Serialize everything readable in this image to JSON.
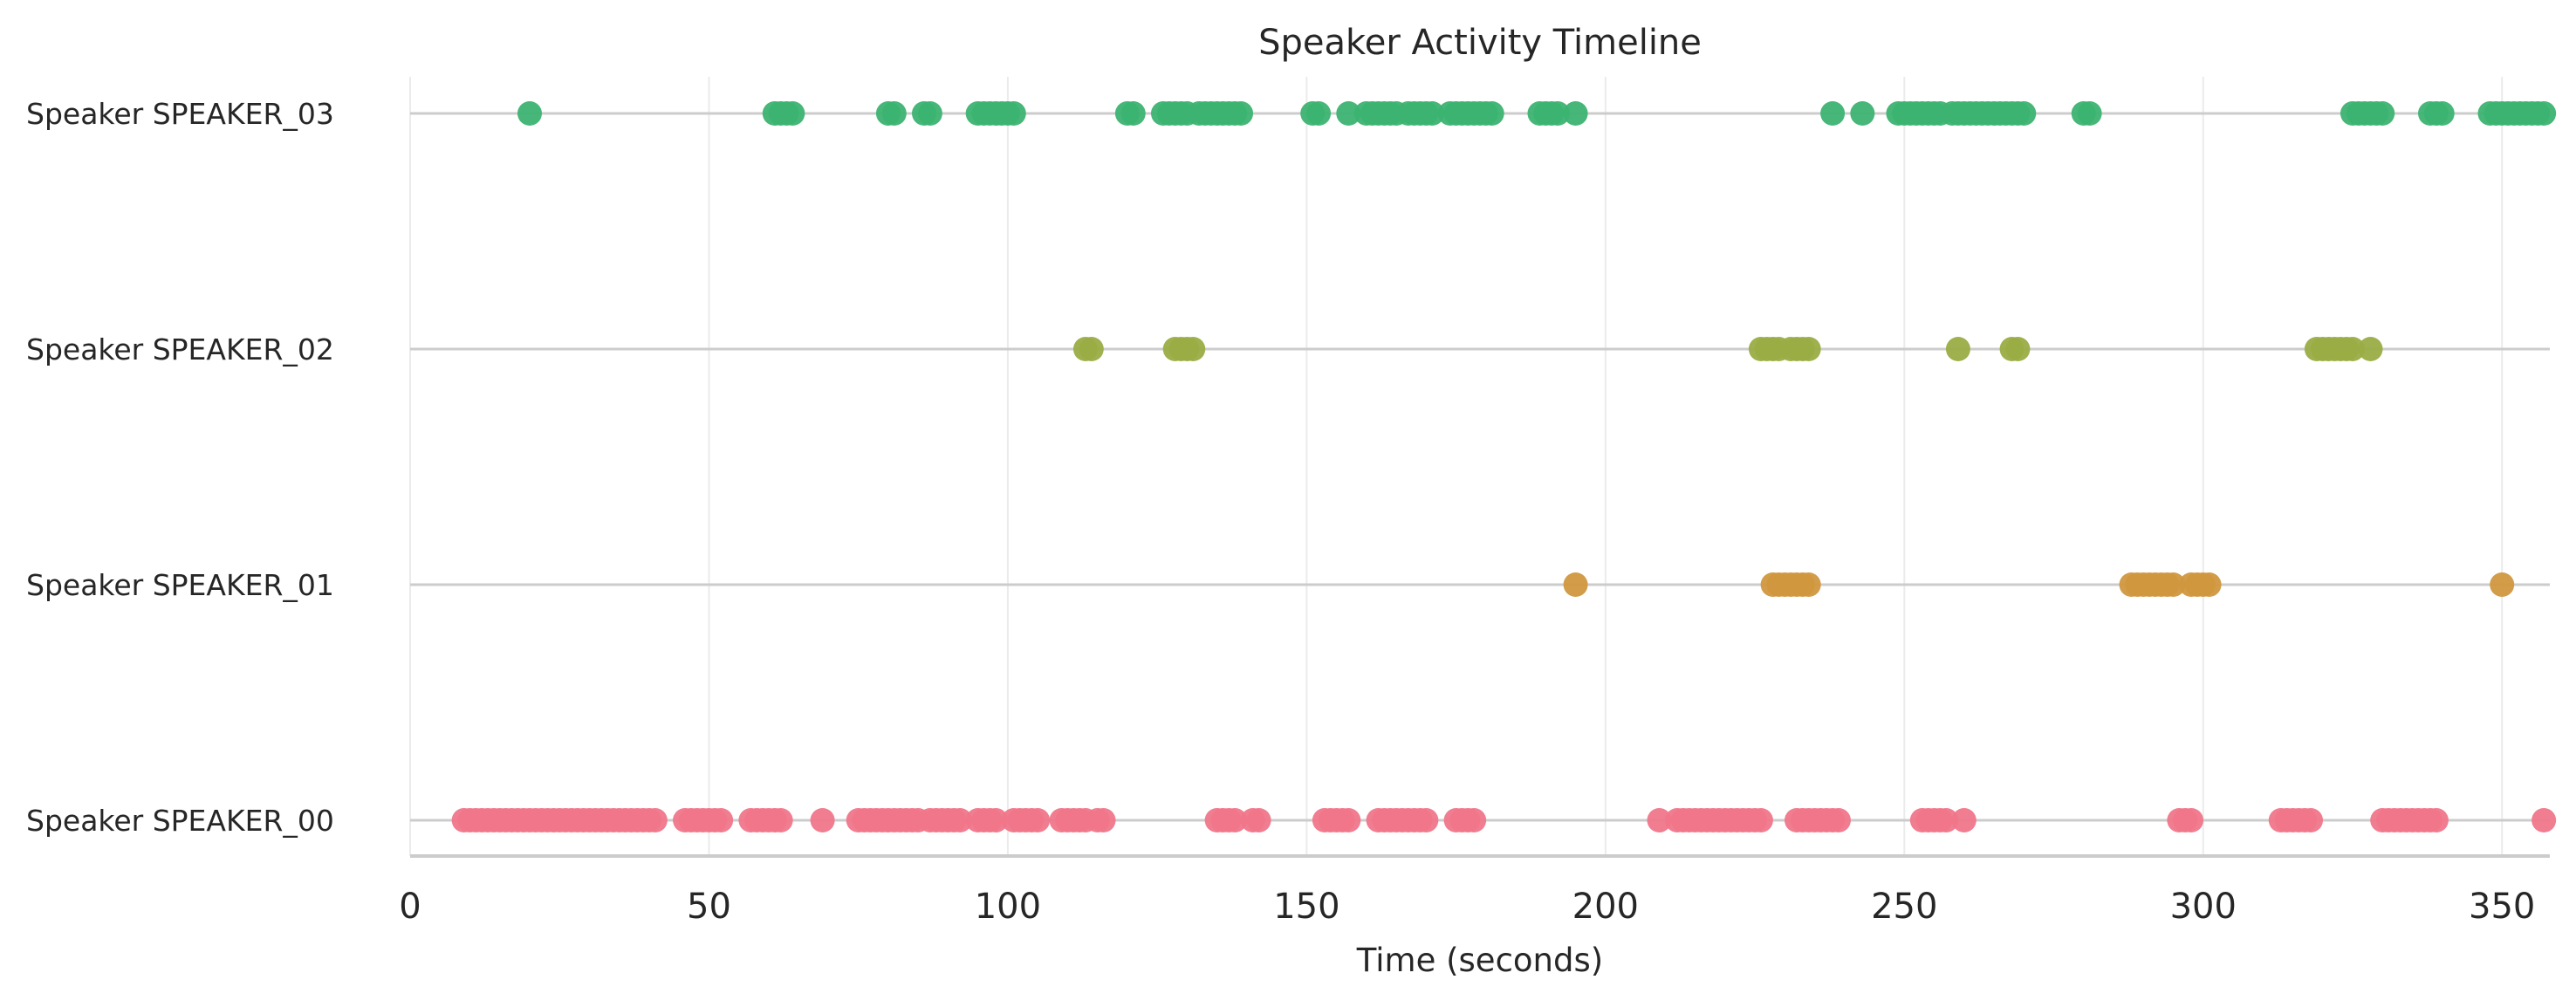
{
  "chart_data": {
    "type": "scatter",
    "title": "Speaker Activity Timeline",
    "xlabel": "Time (seconds)",
    "ylabel": "",
    "xlim": [
      0,
      358
    ],
    "xticks": [
      0,
      50,
      100,
      150,
      200,
      250,
      300,
      350
    ],
    "grid": "vertical",
    "legend": "none",
    "categories": [
      "Speaker SPEAKER_03",
      "Speaker SPEAKER_02",
      "Speaker SPEAKER_01",
      "Speaker SPEAKER_00"
    ],
    "series": [
      {
        "category": "Speaker SPEAKER_03",
        "color": "#3cb371",
        "x": [
          20,
          61,
          62,
          63,
          64,
          80,
          81,
          86,
          87,
          95,
          96,
          97,
          98,
          99,
          100,
          101,
          120,
          121,
          126,
          127,
          128,
          129,
          130,
          132,
          133,
          134,
          135,
          136,
          137,
          138,
          139,
          151,
          152,
          157,
          160,
          161,
          162,
          163,
          164,
          165,
          167,
          168,
          169,
          170,
          171,
          174,
          175,
          176,
          177,
          178,
          179,
          180,
          181,
          189,
          190,
          191,
          192,
          195,
          238,
          243,
          249,
          250,
          251,
          252,
          253,
          254,
          255,
          256,
          258,
          259,
          260,
          261,
          262,
          263,
          264,
          265,
          266,
          267,
          268,
          269,
          270,
          280,
          281,
          325,
          326,
          327,
          328,
          329,
          330,
          338,
          339,
          340,
          348,
          349,
          350,
          351,
          352,
          353,
          354,
          355,
          356,
          357
        ]
      },
      {
        "category": "Speaker SPEAKER_02",
        "color": "#9aad45",
        "x": [
          113,
          114,
          128,
          129,
          130,
          131,
          226,
          227,
          228,
          229,
          231,
          232,
          233,
          234,
          259,
          268,
          269,
          319,
          320,
          321,
          322,
          323,
          324,
          325,
          328
        ]
      },
      {
        "category": "Speaker SPEAKER_01",
        "color": "#d0973f",
        "x": [
          195,
          228,
          229,
          230,
          231,
          232,
          233,
          234,
          288,
          289,
          290,
          291,
          292,
          293,
          294,
          295,
          298,
          299,
          300,
          301,
          350
        ]
      },
      {
        "category": "Speaker SPEAKER_00",
        "color": "#f0768a",
        "x": [
          9,
          10,
          11,
          12,
          13,
          14,
          15,
          16,
          17,
          18,
          19,
          20,
          21,
          22,
          23,
          24,
          25,
          26,
          27,
          28,
          29,
          30,
          31,
          32,
          33,
          34,
          35,
          36,
          37,
          38,
          39,
          40,
          41,
          46,
          47,
          48,
          49,
          50,
          51,
          52,
          57,
          58,
          59,
          60,
          61,
          62,
          69,
          75,
          76,
          77,
          78,
          79,
          80,
          81,
          82,
          83,
          84,
          85,
          87,
          88,
          89,
          90,
          91,
          92,
          95,
          96,
          97,
          98,
          101,
          102,
          103,
          104,
          105,
          109,
          110,
          111,
          112,
          113,
          115,
          116,
          135,
          136,
          137,
          138,
          141,
          142,
          153,
          154,
          155,
          156,
          157,
          162,
          163,
          164,
          165,
          166,
          167,
          168,
          169,
          170,
          175,
          176,
          177,
          178,
          209,
          212,
          213,
          214,
          215,
          216,
          217,
          218,
          219,
          220,
          221,
          222,
          223,
          224,
          225,
          226,
          232,
          233,
          234,
          235,
          236,
          237,
          238,
          239,
          253,
          254,
          255,
          256,
          257,
          260,
          296,
          297,
          298,
          313,
          314,
          315,
          316,
          317,
          318,
          330,
          331,
          332,
          333,
          334,
          335,
          336,
          337,
          338,
          339,
          357
        ]
      }
    ]
  }
}
